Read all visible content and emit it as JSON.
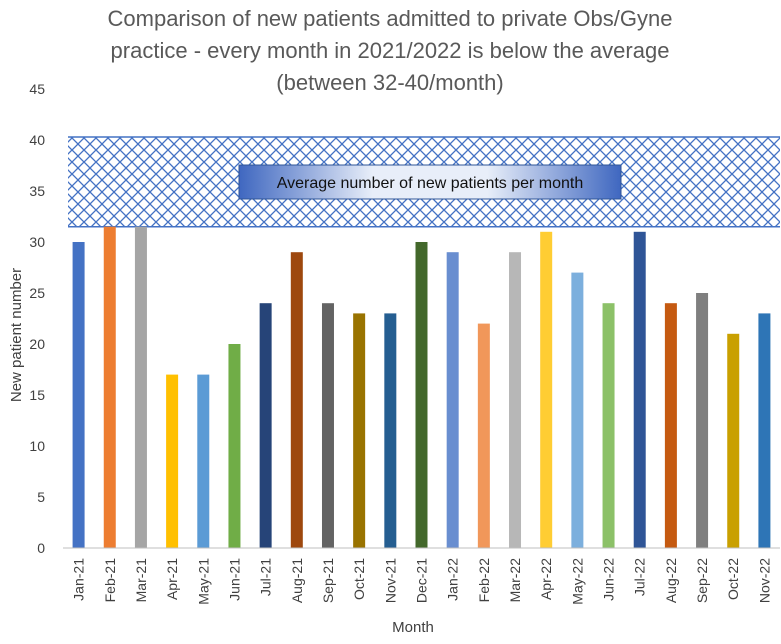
{
  "chart_data": {
    "type": "bar",
    "title_lines": [
      "Comparison of new patients admitted to private Obs/Gyne",
      "practice - every month in 2021/2022 is below the average",
      "(between 32-40/month)"
    ],
    "xlabel": "Month",
    "ylabel": "New patient number",
    "ylim": [
      0,
      45
    ],
    "yticks": [
      0,
      5,
      10,
      15,
      20,
      25,
      30,
      35,
      40,
      45
    ],
    "grid": false,
    "average_band": {
      "low": 31.5,
      "high": 40.3,
      "label": "Average number of new patients per month",
      "pattern_color": "#4472c4"
    },
    "categories": [
      "Jan-21",
      "Feb-21",
      "Mar-21",
      "Apr-21",
      "May-21",
      "Jun-21",
      "Jul-21",
      "Aug-21",
      "Sep-21",
      "Oct-21",
      "Nov-21",
      "Dec-21",
      "Jan-22",
      "Feb-22",
      "Mar-22",
      "Apr-22",
      "May-22",
      "Jun-22",
      "Jul-22",
      "Aug-22",
      "Sep-22",
      "Oct-22",
      "Nov-22"
    ],
    "values": [
      30,
      31.5,
      31.5,
      17,
      17,
      20,
      24,
      29,
      24,
      23,
      23,
      30,
      29,
      22,
      29,
      31,
      27,
      24,
      31,
      24,
      25,
      21,
      23
    ],
    "colors": [
      "#4472c4",
      "#ed7d31",
      "#a5a5a5",
      "#ffc000",
      "#5b9bd5",
      "#70ad47",
      "#264478",
      "#9e480e",
      "#636363",
      "#997300",
      "#255e91",
      "#43682b",
      "#698ed0",
      "#f1975a",
      "#b7b7b7",
      "#ffcd33",
      "#7cafdd",
      "#8cc168",
      "#2f5597",
      "#c55a11",
      "#7f7f7f",
      "#c9a000",
      "#2e75b6"
    ]
  }
}
